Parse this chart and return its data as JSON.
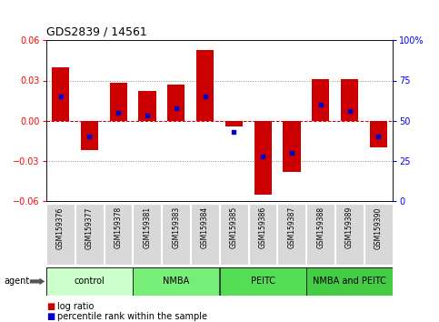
{
  "title": "GDS2839 / 14561",
  "samples": [
    "GSM159376",
    "GSM159377",
    "GSM159378",
    "GSM159381",
    "GSM159383",
    "GSM159384",
    "GSM159385",
    "GSM159386",
    "GSM159387",
    "GSM159388",
    "GSM159389",
    "GSM159390"
  ],
  "log_ratios": [
    0.04,
    -0.022,
    0.028,
    0.022,
    0.027,
    0.053,
    -0.004,
    -0.055,
    -0.038,
    0.031,
    0.031,
    -0.02
  ],
  "percentile_ranks": [
    65,
    40,
    55,
    53,
    58,
    65,
    43,
    28,
    30,
    60,
    56,
    40
  ],
  "groups": [
    {
      "label": "control",
      "start": 0,
      "end": 3,
      "color": "#ccffcc"
    },
    {
      "label": "NMBA",
      "start": 3,
      "end": 6,
      "color": "#77ee77"
    },
    {
      "label": "PEITC",
      "start": 6,
      "end": 9,
      "color": "#55dd55"
    },
    {
      "label": "NMBA and PEITC",
      "start": 9,
      "end": 12,
      "color": "#44cc44"
    }
  ],
  "bar_color": "#cc0000",
  "dot_color": "#0000cc",
  "ylim": [
    -0.06,
    0.06
  ],
  "yticks_left": [
    -0.06,
    -0.03,
    0,
    0.03,
    0.06
  ],
  "yticks_right": [
    0,
    25,
    50,
    75,
    100
  ],
  "bar_width": 0.6
}
